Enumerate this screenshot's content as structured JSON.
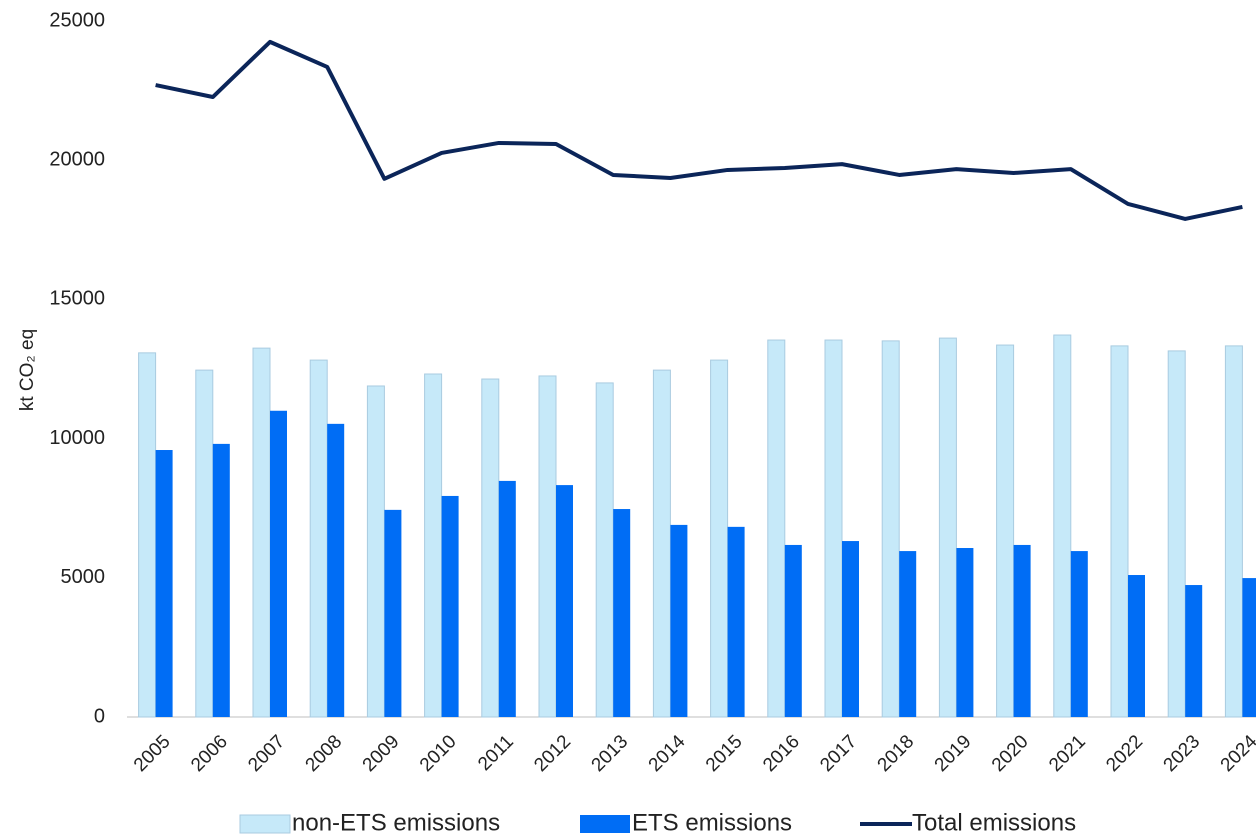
{
  "chart_data": {
    "type": "bar-line",
    "y_label": "kt CO₂ eq",
    "categories": [
      "2005",
      "2006",
      "2007",
      "2008",
      "2009",
      "2010",
      "2011",
      "2012",
      "2013",
      "2014",
      "2015",
      "2016",
      "2017",
      "2018",
      "2019",
      "2020",
      "2021",
      "2022",
      "2023",
      "2024"
    ],
    "series": [
      {
        "name": "non-ETS emissions",
        "type": "bar",
        "color": "#c6e9f9",
        "values": [
          13080,
          12460,
          13250,
          12820,
          11890,
          12320,
          12140,
          12250,
          12000,
          12460,
          12820,
          13540,
          13540,
          13510,
          13610,
          13360,
          13720,
          13330,
          13150,
          13330
        ]
      },
      {
        "name": "ETS emissions",
        "type": "bar",
        "color": "#006df5",
        "values": [
          9590,
          9810,
          11000,
          10530,
          7440,
          7940,
          8480,
          8330,
          7470,
          6900,
          6830,
          6180,
          6320,
          5960,
          6070,
          6180,
          5960,
          5100,
          4740,
          4990
        ]
      },
      {
        "name": "Total emissions",
        "type": "line",
        "color": "#0b2559",
        "values": [
          22700,
          22270,
          24250,
          23350,
          19330,
          20260,
          20620,
          20580,
          19470,
          19360,
          19650,
          19720,
          19860,
          19470,
          19680,
          19540,
          19680,
          18430,
          17890,
          18320
        ]
      }
    ],
    "ylim": [
      0,
      25000
    ],
    "yticks": [
      0,
      5000,
      10000,
      15000,
      20000,
      25000
    ],
    "grid": false,
    "legend": "bottom"
  }
}
